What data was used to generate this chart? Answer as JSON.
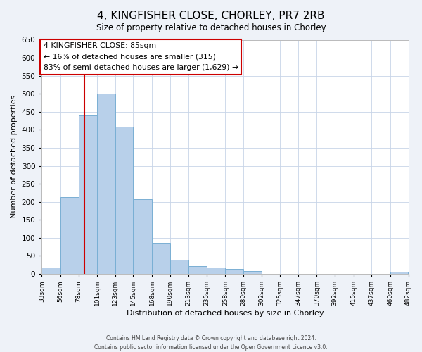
{
  "title": "4, KINGFISHER CLOSE, CHORLEY, PR7 2RB",
  "subtitle": "Size of property relative to detached houses in Chorley",
  "xlabel": "Distribution of detached houses by size in Chorley",
  "ylabel": "Number of detached properties",
  "bar_edges": [
    33,
    56,
    78,
    101,
    123,
    145,
    168,
    190,
    213,
    235,
    258,
    280,
    302,
    325,
    347,
    370,
    392,
    415,
    437,
    460,
    482
  ],
  "bar_heights": [
    18,
    213,
    440,
    500,
    408,
    207,
    87,
    40,
    22,
    18,
    13,
    8,
    0,
    0,
    0,
    0,
    0,
    0,
    0,
    5
  ],
  "bar_color": "#b8d0ea",
  "bar_edge_color": "#7aafd4",
  "vline_x": 85,
  "vline_color": "#cc0000",
  "annotation_line1": "4 KINGFISHER CLOSE: 85sqm",
  "annotation_line2": "← 16% of detached houses are smaller (315)",
  "annotation_line3": "83% of semi-detached houses are larger (1,629) →",
  "ylim": [
    0,
    650
  ],
  "yticks": [
    0,
    50,
    100,
    150,
    200,
    250,
    300,
    350,
    400,
    450,
    500,
    550,
    600,
    650
  ],
  "tick_labels": [
    "33sqm",
    "56sqm",
    "78sqm",
    "101sqm",
    "123sqm",
    "145sqm",
    "168sqm",
    "190sqm",
    "213sqm",
    "235sqm",
    "258sqm",
    "280sqm",
    "302sqm",
    "325sqm",
    "347sqm",
    "370sqm",
    "392sqm",
    "415sqm",
    "437sqm",
    "460sqm",
    "482sqm"
  ],
  "footer_line1": "Contains HM Land Registry data © Crown copyright and database right 2024.",
  "footer_line2": "Contains public sector information licensed under the Open Government Licence v3.0.",
  "bg_color": "#eef2f8",
  "plot_bg_color": "#ffffff",
  "grid_color": "#c8d4e8"
}
